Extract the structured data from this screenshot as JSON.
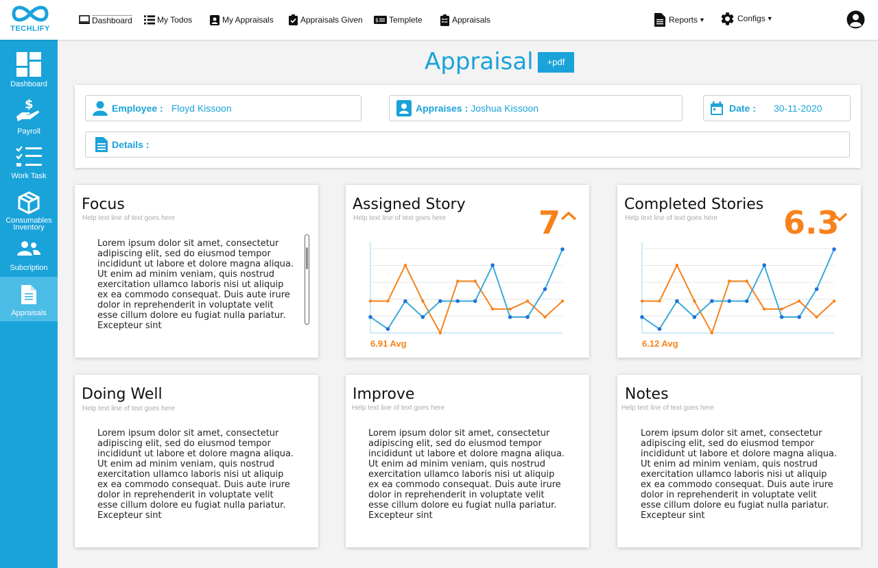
{
  "brand": {
    "name": "TECHLIFY"
  },
  "nav": {
    "dashboard": "Dashboard",
    "todos": "My Todos",
    "my_appraisals": "My Appraisals",
    "appraisals_given": "Appraisals Given",
    "template": "Templete",
    "appraisals": "Appraisals",
    "reports": "Reports",
    "configs": "Configs"
  },
  "sidebar": {
    "items": [
      {
        "label": "Dashboard"
      },
      {
        "label": "Payroll"
      },
      {
        "label": "Work Task"
      },
      {
        "label": "Consumables",
        "label2": "Inventory"
      },
      {
        "label": "Subcription"
      },
      {
        "label": "Appraisals"
      }
    ]
  },
  "page": {
    "title": "Appraisal",
    "pdf_button": "+pdf"
  },
  "info": {
    "employee_label": "Employee :",
    "employee_value": "Floyd Kissoon",
    "appraises_label": "Appraises :",
    "appraises_value": "Joshua Kissoon",
    "date_label": "Date :",
    "date_value": "30-11-2020",
    "details_label": "Details :"
  },
  "help_text": "Help text line of text goes here",
  "lorem": "Lorem ipsum dolor sit amet, consectetur adipiscing elit, sed do eiusmod tempor incididunt ut labore et dolore magna aliqua. Ut enim ad minim veniam, quis nostrud exercitation ullamco laboris nisi ut aliquip ex ea commodo consequat. Duis aute irure dolor in reprehenderit in voluptate velit esse cillum dolore eu fugiat nulla pariatur. Excepteur sint",
  "cards": {
    "focus": {
      "title": "Focus"
    },
    "assigned": {
      "title": "Assigned Story",
      "value": "7",
      "avg": "6.91 Avg",
      "trend": "up"
    },
    "completed": {
      "title": "Completed Stories",
      "value": "6.3",
      "avg": "6.12 Avg",
      "trend": "down"
    },
    "doing_well": {
      "title": "Doing Well"
    },
    "improve": {
      "title": "Improve"
    },
    "notes": {
      "title": "Notes"
    }
  },
  "colors": {
    "accent": "#1aa3d9",
    "orange": "#f7821b",
    "blue_line": "#3aa9dc"
  },
  "icons": [
    "dashboard-icon",
    "list-icon",
    "id-card-icon",
    "clipboard-check-icon",
    "template-icon",
    "clipboard-icon",
    "document-icon",
    "gear-icon",
    "user-circle-icon"
  ],
  "chart_data": [
    {
      "type": "line",
      "series": [
        {
          "values": [
            4,
            4,
            8.5,
            4,
            0,
            6.5,
            6.5,
            3,
            3,
            4,
            2,
            4
          ]
        },
        {
          "values": [
            2,
            0.5,
            4,
            2,
            4,
            4,
            4,
            8.5,
            2,
            2,
            5.5,
            10.5
          ]
        }
      ]
    },
    {
      "type": "line",
      "series": [
        {
          "values": [
            4,
            4,
            8.5,
            4,
            0,
            6.5,
            6.5,
            3,
            3,
            4,
            2,
            4
          ]
        },
        {
          "values": [
            2,
            0.5,
            4,
            2,
            4,
            4,
            4,
            8.5,
            2,
            2,
            5.5,
            10.5
          ]
        }
      ]
    }
  ]
}
